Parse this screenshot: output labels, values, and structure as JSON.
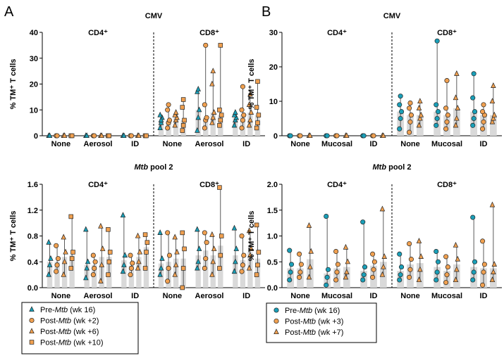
{
  "colors": {
    "pre": "#1a9fb8",
    "post": "#f0a050",
    "bar": "#d9d9d9",
    "stroke": "#222222"
  },
  "panels": [
    {
      "letter": "A",
      "legend": [
        {
          "series": "pre",
          "shape": "triangle",
          "pre": "Pre-",
          "italic": "Mtb",
          "post": " (wk 16)"
        },
        {
          "series": "post2",
          "shape": "circle",
          "pre": "Post-",
          "italic": "Mtb",
          "post": " (wk +2)"
        },
        {
          "series": "post6",
          "shape": "triangle",
          "pre": "Post-",
          "italic": "Mtb",
          "post": " (wk +6)"
        },
        {
          "series": "post10",
          "shape": "square",
          "pre": "Post-",
          "italic": "Mtb",
          "post": " (wk +10)"
        }
      ],
      "charts": [
        {
          "title_plain": "CMV",
          "title_italic": "",
          "title_rest": "",
          "ylim": [
            0,
            40
          ],
          "yticks": [
            0,
            10,
            20,
            30,
            40
          ],
          "ytick_labels": [
            "0",
            "10",
            "20",
            "30",
            "40"
          ],
          "ylabel": "% TM⁺ T cells",
          "subsets": [
            "CD4⁺",
            "CD8⁺"
          ],
          "groups": [
            "None",
            "Aerosol",
            "ID",
            "None",
            "Aerosol",
            "ID"
          ],
          "series_keys": [
            "pre",
            "post2",
            "post6",
            "post10"
          ],
          "data": [
            [
              [
                0,
                0
              ],
              [
                0,
                0
              ],
              [
                0,
                0
              ],
              [
                0,
                0
              ]
            ],
            [
              [
                0,
                0
              ],
              [
                0,
                0
              ],
              [
                0,
                0
              ],
              [
                0,
                0
              ]
            ],
            [
              [
                0,
                0
              ],
              [
                0,
                0
              ],
              [
                0,
                0
              ],
              [
                0,
                0
              ]
            ],
            [
              [
                3,
                5,
                7,
                8,
                6
              ],
              [
                3,
                5,
                6,
                10,
                12
              ],
              [
                4,
                6,
                7,
                8,
                9
              ],
              [
                2,
                4,
                6,
                11,
                14
              ]
            ],
            [
              [
                2,
                7,
                10,
                17,
                18
              ],
              [
                3,
                6,
                7,
                12,
                35
              ],
              [
                5,
                7,
                9,
                20,
                25
              ],
              [
                4,
                6,
                8,
                10,
                35
              ]
            ],
            [
              [
                4,
                6,
                7,
                8,
                9
              ],
              [
                3,
                6,
                8,
                10,
                19
              ],
              [
                4,
                6,
                9,
                12,
                16
              ],
              [
                3,
                5,
                8,
                11,
                21
              ]
            ]
          ]
        },
        {
          "title_plain": "",
          "title_italic": "Mtb",
          "title_rest": " pool 2",
          "ylim": [
            0,
            1.6
          ],
          "yticks": [
            0,
            0.4,
            0.8,
            1.2,
            1.6
          ],
          "ytick_labels": [
            "0.0",
            "0.4",
            "0.8",
            "1.2",
            "1.6"
          ],
          "ylabel": "% TM⁺ T cells",
          "subsets": [
            "CD4⁺",
            "CD8⁺"
          ],
          "groups": [
            "None",
            "Aerosol",
            "ID",
            "None",
            "Aerosol",
            "ID"
          ],
          "series_keys": [
            "pre",
            "post2",
            "post6",
            "post10"
          ],
          "data": [
            [
              [
                0.2,
                0.35,
                0.45,
                0.7
              ],
              [
                0.25,
                0.35,
                0.45,
                0.65
              ],
              [
                0.2,
                0.4,
                0.55,
                0.78
              ],
              [
                0.3,
                0.45,
                0.55,
                1.1
              ]
            ],
            [
              [
                0.15,
                0.3,
                0.4,
                0.9
              ],
              [
                0.2,
                0.3,
                0.4,
                0.5
              ],
              [
                0.1,
                0.35,
                0.6,
                0.95
              ],
              [
                0.2,
                0.4,
                0.55,
                0.9
              ]
            ],
            [
              [
                0.25,
                0.35,
                0.5,
                1.12
              ],
              [
                0.2,
                0.3,
                0.38,
                0.5
              ],
              [
                0.3,
                0.4,
                0.55,
                0.8
              ],
              [
                0.3,
                0.55,
                0.7,
                0.82
              ]
            ],
            [
              [
                0.2,
                0.3,
                0.45,
                0.85
              ],
              [
                0.1,
                0.3,
                0.5,
                0.85
              ],
              [
                0.2,
                0.35,
                0.55,
                0.78
              ],
              [
                0.0,
                0.3,
                0.6,
                0.85
              ]
            ],
            [
              [
                0.3,
                0.4,
                0.6,
                0.9
              ],
              [
                0.3,
                0.45,
                0.7,
                0.85
              ],
              [
                0.2,
                0.4,
                0.6,
                0.82
              ],
              [
                0.3,
                0.5,
                0.8,
                1.55
              ]
            ],
            [
              [
                0.25,
                0.4,
                0.6,
                0.92
              ],
              [
                0.25,
                0.35,
                0.5,
                0.8
              ],
              [
                0.3,
                0.5,
                0.6,
                0.88
              ],
              [
                0.2,
                0.35,
                0.55,
                0.97
              ]
            ]
          ]
        }
      ]
    },
    {
      "letter": "B",
      "legend": [
        {
          "series": "pre",
          "shape": "circle",
          "pre": "Pre-",
          "italic": "Mtb",
          "post": " (wk 16)"
        },
        {
          "series": "post3",
          "shape": "circle",
          "pre": "Post-",
          "italic": "Mtb",
          "post": " (wk +3)"
        },
        {
          "series": "post7",
          "shape": "triangle",
          "pre": "Post-",
          "italic": "Mtb",
          "post": " (wk +7)"
        }
      ],
      "charts": [
        {
          "title_plain": "CMV",
          "title_italic": "",
          "title_rest": "",
          "ylim": [
            0,
            30
          ],
          "yticks": [
            0,
            10,
            20,
            30
          ],
          "ytick_labels": [
            "0",
            "10",
            "20",
            "30"
          ],
          "ylabel": "% TM⁺ T cells",
          "subsets": [
            "CD4⁺",
            "CD8⁺"
          ],
          "groups": [
            "None",
            "Mucosal",
            "ID",
            "None",
            "Mucosal",
            "ID"
          ],
          "series_keys": [
            "pre",
            "post3",
            "post7"
          ],
          "data": [
            [
              [
                0,
                0
              ],
              [
                0,
                0
              ],
              [
                0,
                0
              ]
            ],
            [
              [
                0,
                0
              ],
              [
                0,
                0
              ],
              [
                0,
                0
              ]
            ],
            [
              [
                0,
                0
              ],
              [
                0,
                0
              ],
              [
                0,
                0
              ]
            ],
            [
              [
                2,
                5,
                7,
                9,
                11.5
              ],
              [
                1,
                4,
                6,
                8,
                9.5
              ],
              [
                3,
                5,
                6,
                8,
                10
              ]
            ],
            [
              [
                3,
                5,
                7,
                9,
                27.5
              ],
              [
                2,
                4,
                6,
                8,
                16
              ],
              [
                3,
                5,
                8,
                11,
                18
              ]
            ],
            [
              [
                3,
                5,
                7,
                11,
                18
              ],
              [
                2,
                4,
                6,
                7,
                9
              ],
              [
                4,
                5,
                6,
                10,
                14.5
              ]
            ]
          ]
        },
        {
          "title_plain": "",
          "title_italic": "Mtb",
          "title_rest": " pool 2",
          "ylim": [
            0,
            2.0
          ],
          "yticks": [
            0,
            0.5,
            1.0,
            1.5,
            2.0
          ],
          "ytick_labels": [
            "0.0",
            "0.5",
            "1.0",
            "1.5",
            "2.0"
          ],
          "ylabel": "% TM⁺ T cells",
          "subsets": [
            "CD4⁺",
            "CD8⁺"
          ],
          "groups": [
            "None",
            "Mucosal",
            "ID",
            "None",
            "Mucosal",
            "ID"
          ],
          "series_keys": [
            "pre",
            "post3",
            "post7"
          ],
          "data": [
            [
              [
                0.15,
                0.3,
                0.45,
                0.72
              ],
              [
                0.2,
                0.3,
                0.45,
                0.65
              ],
              [
                0.2,
                0.4,
                0.7,
                1.2
              ]
            ],
            [
              [
                0.05,
                0.2,
                0.35,
                1.38
              ],
              [
                0.15,
                0.3,
                0.45,
                0.7
              ],
              [
                0.2,
                0.3,
                0.5,
                0.78
              ]
            ],
            [
              [
                0.15,
                0.25,
                0.4,
                1.27
              ],
              [
                0.2,
                0.35,
                0.5,
                0.65
              ],
              [
                0.25,
                0.4,
                0.6,
                1.52
              ]
            ],
            [
              [
                0.15,
                0.25,
                0.4,
                0.65
              ],
              [
                0.2,
                0.35,
                0.55,
                0.85
              ],
              [
                0.15,
                0.35,
                0.6,
                0.9
              ]
            ],
            [
              [
                0.15,
                0.3,
                0.5,
                0.7
              ],
              [
                0.1,
                0.25,
                0.4,
                0.6
              ],
              [
                0.15,
                0.35,
                0.55,
                0.82
              ]
            ],
            [
              [
                0.15,
                0.3,
                0.5,
                1.36
              ],
              [
                0.05,
                0.3,
                0.45,
                0.9
              ],
              [
                0.15,
                0.3,
                0.45,
                1.6
              ]
            ]
          ]
        }
      ]
    }
  ]
}
